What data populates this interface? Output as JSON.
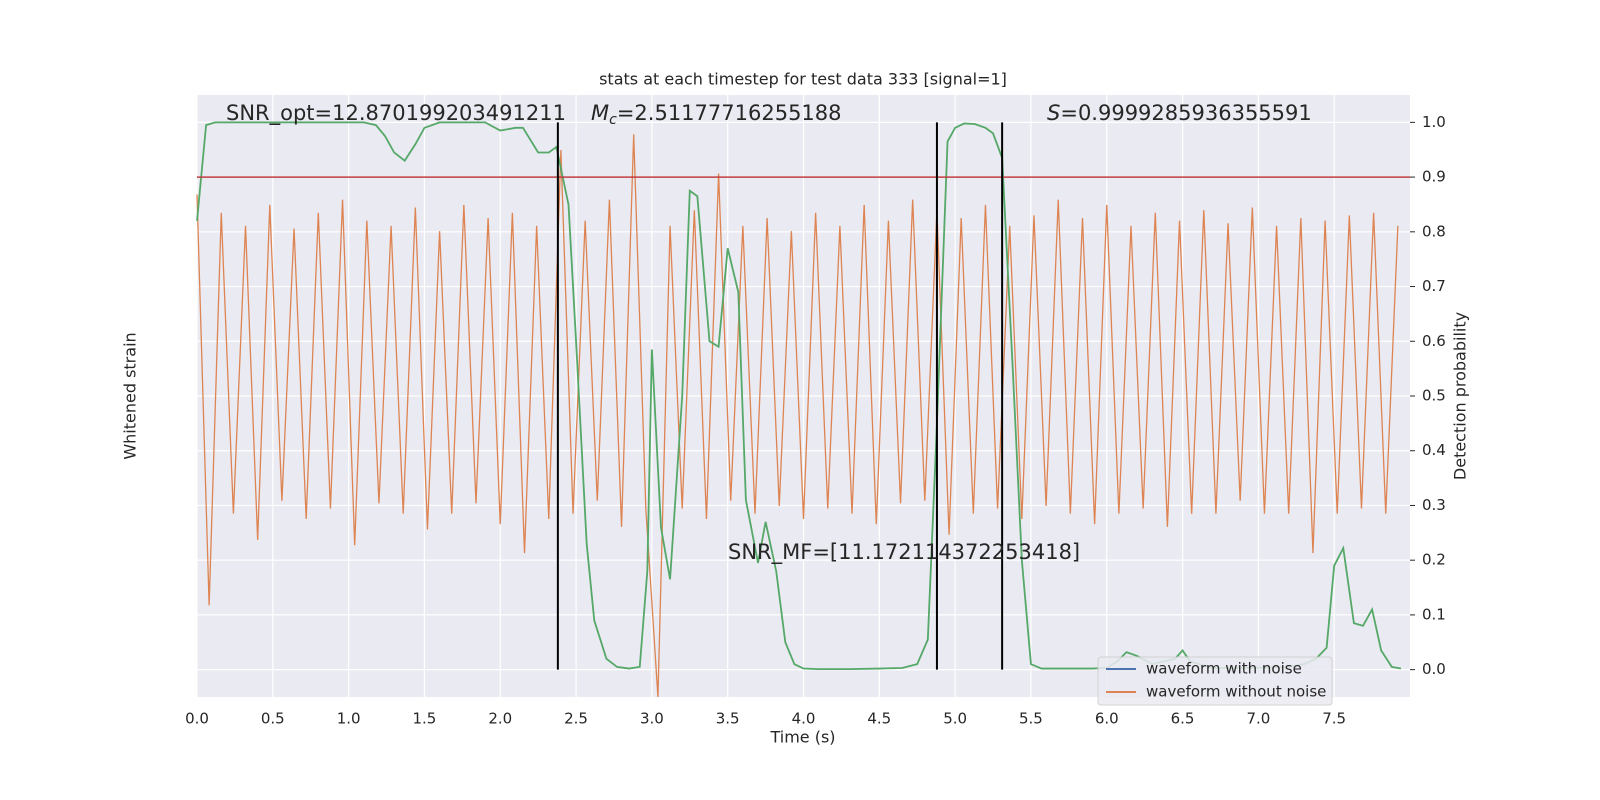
{
  "chart_data": {
    "type": "line",
    "title": "stats at each timestep for test data 333 [signal=1]",
    "xlabel": "Time (s)",
    "ylabel": "Whitened strain",
    "y2label": "Detection probability",
    "xlim": [
      0,
      8.0
    ],
    "xticks": [
      {
        "value": 0,
        "label": "0.0"
      },
      0.5,
      {
        "value": 1,
        "label": "1.0"
      },
      1.5,
      {
        "value": 2,
        "label": "2.0"
      },
      2.5,
      {
        "value": 3,
        "label": "3.0"
      },
      3.5,
      {
        "value": 4,
        "label": "4.0"
      },
      4.5,
      {
        "value": 5,
        "label": "5.0"
      },
      5.5,
      {
        "value": 6,
        "label": "6.0"
      },
      6.5,
      {
        "value": 7,
        "label": "7.0"
      },
      7.5
    ],
    "ylim": [
      -1.3,
      1.0
    ],
    "y2lim": [
      -0.05,
      1.05
    ],
    "y2ticks": [
      {
        "value": 0,
        "label": "0.0"
      },
      0.1,
      0.2,
      0.3,
      0.4,
      0.5,
      0.6,
      0.7,
      0.8,
      0.9,
      {
        "value": 1,
        "label": "1.0"
      }
    ],
    "grid": true,
    "series": [
      {
        "name": "waveform without noise",
        "color": "#dd8452",
        "x": [
          0,
          0.08,
          0.16,
          0.24,
          0.32,
          0.4,
          0.48,
          0.56,
          0.64,
          0.72,
          0.8,
          0.88,
          0.96,
          1.04,
          1.12,
          1.2,
          1.28,
          1.36,
          1.44,
          1.52,
          1.6,
          1.68,
          1.76,
          1.84,
          1.92,
          2,
          2.08,
          2.16,
          2.24,
          2.32,
          2.4,
          2.48,
          2.56,
          2.64,
          2.72,
          2.8,
          2.88,
          2.96,
          3.04,
          3.12,
          3.2,
          3.28,
          3.36,
          3.44,
          3.52,
          3.6,
          3.68,
          3.76,
          3.84,
          3.92,
          4,
          4.08,
          4.16,
          4.24,
          4.32,
          4.4,
          4.48,
          4.56,
          4.64,
          4.72,
          4.8,
          4.88,
          4.96,
          5.04,
          5.12,
          5.2,
          5.28,
          5.36,
          5.44,
          5.52,
          5.6,
          5.68,
          5.76,
          5.84,
          5.92,
          6,
          6.08,
          6.16,
          6.24,
          6.32,
          6.4,
          6.48,
          6.56,
          6.64,
          6.72,
          6.8,
          6.88,
          6.96,
          7.04,
          7.12,
          7.2,
          7.28,
          7.36,
          7.44,
          7.52,
          7.6,
          7.68,
          7.76,
          7.84,
          7.92
        ],
        "values": [
          0.62,
          -0.95,
          0.55,
          -0.6,
          0.5,
          -0.7,
          0.58,
          -0.55,
          0.49,
          -0.62,
          0.55,
          -0.58,
          0.6,
          -0.72,
          0.52,
          -0.56,
          0.5,
          -0.6,
          0.57,
          -0.66,
          0.48,
          -0.6,
          0.58,
          -0.56,
          0.53,
          -0.64,
          0.55,
          -0.75,
          0.5,
          -0.62,
          0.79,
          -0.6,
          0.52,
          -0.55,
          0.6,
          -0.65,
          0.85,
          -0.58,
          -1.3,
          0.5,
          -0.58,
          0.56,
          -0.62,
          0.7,
          -0.55,
          0.5,
          -0.6,
          0.53,
          -0.57,
          0.48,
          -0.62,
          0.55,
          -0.58,
          0.5,
          -0.6,
          0.58,
          -0.64,
          0.52,
          -0.56,
          0.6,
          -0.55,
          0.56,
          -0.68,
          0.53,
          -0.6,
          0.58,
          -0.58,
          0.5,
          -0.62,
          0.54,
          -0.57,
          0.6,
          -0.6,
          0.53,
          -0.64,
          0.58,
          -0.6,
          0.5,
          -0.58,
          0.55,
          -0.65,
          0.52,
          -0.6,
          0.56,
          -0.6,
          0.51,
          -0.55,
          0.57,
          -0.6,
          0.5,
          -0.6,
          0.53,
          -0.75,
          0.52,
          -0.6,
          0.54,
          -0.58,
          0.55,
          -0.6,
          0.5
        ]
      },
      {
        "name": "detection probability",
        "color": "#55a868",
        "axis": "y2",
        "x": [
          0,
          0.06,
          0.12,
          0.2,
          1.1,
          1.18,
          1.24,
          1.3,
          1.37,
          1.44,
          1.5,
          1.6,
          1.9,
          2,
          2.1,
          2.15,
          2.25,
          2.32,
          2.37,
          2.45,
          2.5,
          2.57,
          2.62,
          2.7,
          2.77,
          2.85,
          2.92,
          2.97,
          3,
          3.06,
          3.12,
          3.2,
          3.25,
          3.3,
          3.38,
          3.44,
          3.5,
          3.57,
          3.62,
          3.7,
          3.75,
          3.82,
          3.88,
          3.94,
          4,
          4.1,
          4.3,
          4.5,
          4.65,
          4.75,
          4.82,
          4.88,
          4.95,
          5,
          5.06,
          5.13,
          5.2,
          5.25,
          5.31,
          5.38,
          5.44,
          5.5,
          5.57,
          5.7,
          5.9,
          6,
          6.07,
          6.13,
          6.2,
          6.3,
          6.45,
          6.5,
          6.55,
          6.7,
          6.9,
          7.2,
          7.3,
          7.38,
          7.45,
          7.5,
          7.56,
          7.63,
          7.69,
          7.75,
          7.81,
          7.88,
          7.94
        ],
        "values": [
          0.82,
          0.995,
          1.0,
          1.0,
          1.0,
          0.995,
          0.975,
          0.945,
          0.93,
          0.96,
          0.99,
          1.0,
          1.0,
          0.985,
          0.99,
          0.99,
          0.945,
          0.945,
          0.955,
          0.85,
          0.6,
          0.23,
          0.09,
          0.02,
          0.005,
          0.002,
          0.005,
          0.18,
          0.585,
          0.26,
          0.165,
          0.5,
          0.875,
          0.865,
          0.6,
          0.59,
          0.77,
          0.69,
          0.31,
          0.195,
          0.27,
          0.18,
          0.05,
          0.01,
          0.002,
          0.001,
          0.001,
          0.002,
          0.003,
          0.01,
          0.055,
          0.45,
          0.965,
          0.99,
          0.998,
          0.997,
          0.99,
          0.98,
          0.935,
          0.55,
          0.2,
          0.01,
          0.002,
          0.002,
          0.002,
          0.003,
          0.015,
          0.032,
          0.025,
          0.01,
          0.02,
          0.035,
          0.015,
          0.003,
          0.003,
          0.005,
          0.01,
          0.02,
          0.04,
          0.19,
          0.222,
          0.085,
          0.08,
          0.11,
          0.035,
          0.005,
          0.002
        ]
      }
    ],
    "threshold": {
      "value": 0.9,
      "color": "#c03d3e"
    },
    "vlines": {
      "x": [
        2.38,
        4.88,
        5.31
      ],
      "color": "#000000",
      "span": [
        0,
        1
      ]
    },
    "legend_position": "lower right",
    "legend": [
      {
        "name": "waveform with noise",
        "color": "#4c72b0"
      },
      {
        "name": "waveform without noise",
        "color": "#dd8452"
      }
    ],
    "annotations": {
      "snr_opt": "SNR_opt=12.870199203491211",
      "mc": {
        "symbol": "M",
        "subscript": "c",
        "text": "=2.51177716255188"
      },
      "s": {
        "symbol": "S",
        "text": "=0.9999285936355591"
      },
      "snr_mf": "SNR_MF=[11.172114372253418]"
    }
  }
}
